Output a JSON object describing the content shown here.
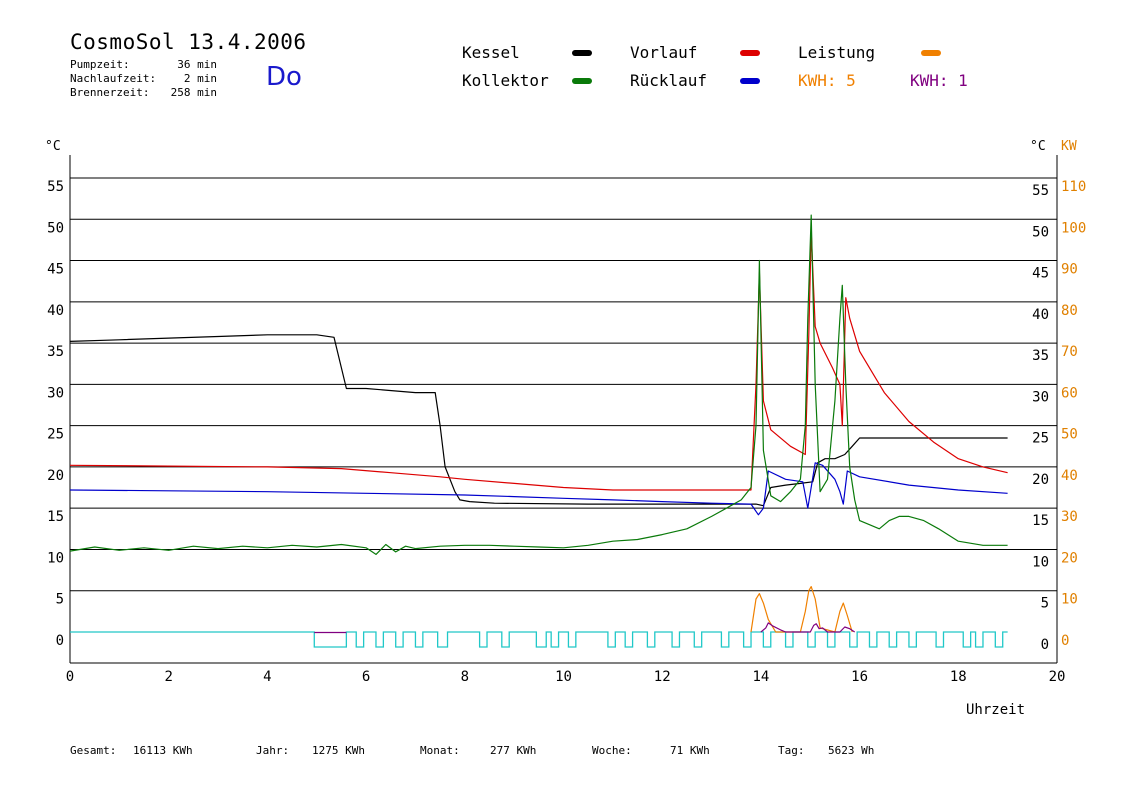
{
  "header": {
    "title": "CosmoSol 13.4.2006",
    "day": "Do",
    "stats": [
      {
        "label": "Pumpzeit:",
        "value": "36 min"
      },
      {
        "label": "Nachlaufzeit:",
        "value": "2 min"
      },
      {
        "label": "Brennerzeit:",
        "value": "258 min"
      }
    ]
  },
  "legend": {
    "kessel": {
      "label": "Kessel",
      "color": "#000000"
    },
    "kollektor": {
      "label": "Kollektor",
      "color": "#0a7a0a"
    },
    "vorlauf": {
      "label": "Vorlauf",
      "color": "#dd0000"
    },
    "ruecklauf": {
      "label": "Rücklauf",
      "color": "#0000cc"
    },
    "leistung": {
      "label": "Leistung",
      "color": "#f08000"
    },
    "kwh1": {
      "label": "KWH: 5",
      "color": "#f08000"
    },
    "kwh2": {
      "label": "KWH: 1",
      "color": "#800080"
    }
  },
  "chart_data": {
    "type": "line",
    "xlabel": "Uhrzeit",
    "ylabel_left": "°C",
    "ylabel_right_temp": "°C",
    "ylabel_right_power": "KW",
    "xlim": [
      0,
      20
    ],
    "ylim": [
      0,
      55
    ],
    "y2lim": [
      0,
      110
    ],
    "x_ticks": [
      "0",
      "2",
      "4",
      "6",
      "8",
      "10",
      "12",
      "14",
      "16",
      "18",
      "20"
    ],
    "y_ticks": [
      "0",
      "5",
      "10",
      "15",
      "20",
      "25",
      "30",
      "35",
      "40",
      "45",
      "50",
      "55"
    ],
    "y2_ticks": [
      "0",
      "10",
      "20",
      "30",
      "40",
      "50",
      "60",
      "70",
      "80",
      "90",
      "100",
      "110"
    ],
    "grid": true,
    "series": [
      {
        "name": "Kessel",
        "color": "#000000",
        "x": [
          0,
          1,
          2,
          3,
          4,
          5,
          5.35,
          5.5,
          5.6,
          6,
          7,
          7.4,
          7.5,
          7.6,
          7.8,
          7.9,
          8.1,
          8.6,
          10.5,
          12,
          13.9,
          14.05,
          14.2,
          14.5,
          14.8,
          15.05,
          15.15,
          15.3,
          15.5,
          15.7,
          15.85,
          16,
          17,
          18,
          19
        ],
        "y": [
          35.2,
          35.4,
          35.6,
          35.8,
          36,
          36,
          35.7,
          32,
          29.5,
          29.5,
          29,
          29,
          25,
          20,
          17,
          16,
          15.8,
          15.6,
          15.5,
          15.5,
          15.5,
          15.3,
          17.5,
          17.8,
          18,
          18.2,
          20.5,
          21,
          21,
          21.5,
          22.5,
          23.5,
          23.5,
          23.5,
          23.5
        ]
      },
      {
        "name": "Vorlauf",
        "color": "#dd0000",
        "x": [
          0,
          2,
          4,
          5.5,
          6.5,
          7.5,
          8,
          9,
          10,
          11,
          12,
          13,
          13.8,
          13.9,
          13.97,
          14.05,
          14.2,
          14.6,
          14.9,
          14.97,
          15.02,
          15.1,
          15.2,
          15.45,
          15.6,
          15.65,
          15.72,
          15.8,
          16,
          16.5,
          17,
          17.5,
          18,
          18.5,
          19
        ],
        "y": [
          20.2,
          20.1,
          20,
          19.8,
          19.3,
          18.8,
          18.5,
          18,
          17.5,
          17.2,
          17.2,
          17.2,
          17.2,
          30,
          43.5,
          28,
          24.5,
          22.5,
          21.5,
          36,
          48.5,
          37,
          35,
          32,
          30,
          25,
          40.5,
          38,
          34,
          29,
          25.5,
          23,
          21,
          20,
          19.3
        ]
      },
      {
        "name": "Rücklauf",
        "color": "#0000cc",
        "x": [
          0,
          2,
          4,
          6,
          8,
          9,
          10,
          11,
          12,
          13,
          13.8,
          13.95,
          14.05,
          14.15,
          14.5,
          14.85,
          14.95,
          15.1,
          15.25,
          15.5,
          15.6,
          15.67,
          15.75,
          16,
          17,
          18,
          19
        ],
        "y": [
          17.2,
          17.1,
          17,
          16.8,
          16.6,
          16.4,
          16.2,
          16,
          15.8,
          15.6,
          15.5,
          14.2,
          15,
          19.5,
          18.5,
          18.2,
          15,
          20.5,
          20.2,
          18.5,
          17,
          15.5,
          19.5,
          18.8,
          17.8,
          17.2,
          16.8
        ]
      },
      {
        "name": "Kollektor",
        "color": "#0a7a0a",
        "x": [
          0,
          0.5,
          1,
          1.5,
          2,
          2.5,
          3,
          3.5,
          4,
          4.5,
          5,
          5.5,
          6,
          6.2,
          6.4,
          6.6,
          6.8,
          7,
          7.5,
          8,
          8.5,
          9,
          9.5,
          10,
          10.5,
          11,
          11.5,
          12,
          12.5,
          13,
          13.3,
          13.6,
          13.8,
          13.9,
          13.97,
          14.05,
          14.2,
          14.4,
          14.6,
          14.8,
          14.9,
          14.95,
          15.02,
          15.1,
          15.2,
          15.35,
          15.5,
          15.6,
          15.65,
          15.72,
          15.8,
          15.9,
          16,
          16.2,
          16.4,
          16.6,
          16.8,
          17,
          17.3,
          17.6,
          18,
          18.5,
          19
        ],
        "y": [
          9.8,
          10.3,
          9.9,
          10.2,
          9.9,
          10.4,
          10.1,
          10.4,
          10.2,
          10.5,
          10.3,
          10.6,
          10.2,
          9.4,
          10.6,
          9.7,
          10.4,
          10.1,
          10.4,
          10.5,
          10.5,
          10.4,
          10.3,
          10.2,
          10.5,
          11,
          11.2,
          11.8,
          12.5,
          14,
          15,
          16,
          17.5,
          25,
          45,
          22,
          16.5,
          15.8,
          17,
          18.5,
          25,
          38,
          50.5,
          30,
          17,
          18.5,
          28,
          38,
          42,
          30,
          20,
          16,
          13.5,
          13,
          12.5,
          13.5,
          14,
          14,
          13.5,
          12.5,
          11,
          10.5,
          10.5
        ]
      },
      {
        "name": "Leistung",
        "color": "#f08000",
        "x": [
          13.8,
          13.9,
          13.97,
          14.05,
          14.15,
          14.3,
          14.8,
          14.9,
          14.97,
          15.02,
          15.1,
          15.2,
          15.5,
          15.6,
          15.67,
          15.75,
          15.85
        ],
        "y": [
          0,
          8,
          9.3,
          7,
          3,
          0,
          0,
          5,
          10,
          11,
          8,
          1,
          0,
          5,
          7,
          4,
          0
        ]
      },
      {
        "name": "KWH",
        "color": "#800080",
        "x": [
          14,
          14.1,
          14.15,
          14.25,
          14.4,
          14.5,
          15,
          15.07,
          15.12,
          15.18,
          15.25,
          15.35,
          15.6,
          15.65,
          15.7,
          15.8,
          15.9
        ],
        "y": [
          0,
          1,
          2.2,
          1.4,
          0.5,
          0,
          0,
          1.6,
          2,
          0.8,
          1,
          0,
          0,
          0.6,
          1.2,
          0.8,
          0
        ]
      }
    ],
    "pump_state": {
      "name": "Pumpe",
      "color": "#20c8c8",
      "on_intervals": [
        [
          4.95,
          5.6
        ],
        [
          5.8,
          5.95
        ],
        [
          6.2,
          6.35
        ],
        [
          6.6,
          6.75
        ],
        [
          7.0,
          7.15
        ],
        [
          7.45,
          7.65
        ],
        [
          8.3,
          8.45
        ],
        [
          8.75,
          8.9
        ],
        [
          9.45,
          9.65
        ],
        [
          9.75,
          9.9
        ],
        [
          10.1,
          10.25
        ],
        [
          10.9,
          11.05
        ],
        [
          11.25,
          11.4
        ],
        [
          11.7,
          11.85
        ],
        [
          12.2,
          12.35
        ],
        [
          12.65,
          12.8
        ],
        [
          13.2,
          13.35
        ],
        [
          13.65,
          13.8
        ],
        [
          14.05,
          14.2
        ],
        [
          14.5,
          14.65
        ],
        [
          14.95,
          15.1
        ],
        [
          15.35,
          15.5
        ],
        [
          15.8,
          15.95
        ],
        [
          16.2,
          16.35
        ],
        [
          16.6,
          16.75
        ],
        [
          17.0,
          17.15
        ],
        [
          17.55,
          17.7
        ],
        [
          18.1,
          18.25
        ],
        [
          18.35,
          18.5
        ],
        [
          18.75,
          18.9
        ]
      ]
    }
  },
  "footer": [
    {
      "label": "Gesamt:",
      "value": "16113 KWh"
    },
    {
      "label": "Jahr:",
      "value": "1275 KWh"
    },
    {
      "label": "Monat:",
      "value": "277 KWh"
    },
    {
      "label": "Woche:",
      "value": "71 KWh"
    },
    {
      "label": "Tag:",
      "value": "5623 Wh"
    }
  ]
}
